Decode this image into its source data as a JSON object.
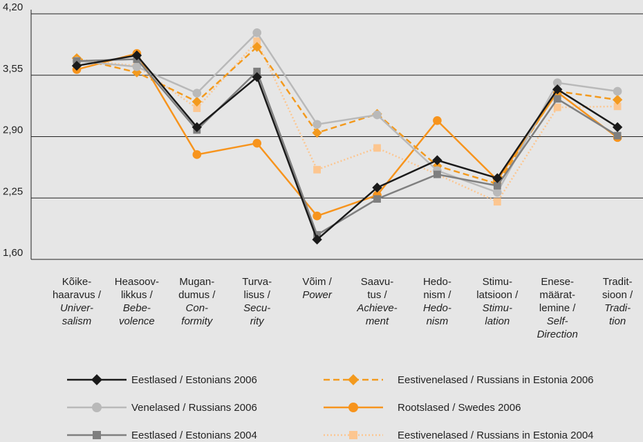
{
  "chart_data": {
    "type": "line",
    "categories": [
      [
        "Kõike-",
        "haaravus /",
        "Univer-",
        "salism"
      ],
      [
        "Heasoov-",
        "likkus /",
        "Bebe-",
        "volence"
      ],
      [
        "Mugan-",
        "dumus /",
        "Con-",
        "formity"
      ],
      [
        "Turva-",
        "lisus /",
        "Secu-",
        "rity"
      ],
      [
        "Võim /",
        "Power"
      ],
      [
        "Saavu-",
        "tus /",
        "Achieve-",
        "ment"
      ],
      [
        "Hedo-",
        "nism /",
        "Hedo-",
        "nism"
      ],
      [
        "Stimu-",
        "latsioon /",
        "Stimu-",
        "lation"
      ],
      [
        "Enese-",
        "määrat-",
        "lemine /",
        "Self-",
        "Direction"
      ],
      [
        "Tradit-",
        "sioon /",
        "Tradi-",
        "tion"
      ]
    ],
    "ylim": [
      1.6,
      4.2
    ],
    "yticks": [
      {
        "value": 1.6,
        "label": "1,60"
      },
      {
        "value": 2.25,
        "label": "2,25"
      },
      {
        "value": 2.9,
        "label": "2,90"
      },
      {
        "value": 3.55,
        "label": "3,55"
      },
      {
        "value": 4.2,
        "label": "4,20"
      }
    ],
    "grid": true,
    "series": [
      {
        "name": "Eestlased / Estonians 2006",
        "color": "#1a1a1a",
        "marker": "diamond",
        "dash": "solid",
        "values": [
          3.65,
          3.76,
          3.0,
          3.53,
          1.81,
          2.36,
          2.65,
          2.46,
          3.4,
          3.0
        ]
      },
      {
        "name": "Venelased / Russians 2006",
        "color": "#b9b9b9",
        "marker": "circle",
        "dash": "solid",
        "values": [
          3.7,
          3.64,
          3.36,
          4.0,
          3.03,
          3.13,
          2.54,
          2.31,
          3.47,
          3.38
        ]
      },
      {
        "name": "Eestlased / Estonians 2004",
        "color": "#7f7f7f",
        "marker": "square",
        "dash": "solid",
        "values": [
          3.7,
          3.72,
          2.97,
          3.59,
          1.86,
          2.24,
          2.5,
          2.38,
          3.3,
          2.91
        ]
      },
      {
        "name": "Eestivenelased / Russians in Estonia 2006",
        "color": "#f39a1e",
        "marker": "diamond",
        "dash": "dashed",
        "values": [
          3.73,
          3.58,
          3.27,
          3.85,
          2.94,
          3.14,
          2.59,
          2.4,
          3.38,
          3.29
        ]
      },
      {
        "name": "Rootslased / Swedes 2006",
        "color": "#f7941d",
        "marker": "circle",
        "dash": "solid",
        "values": [
          3.61,
          3.78,
          2.71,
          2.83,
          2.06,
          2.28,
          3.07,
          2.44,
          3.37,
          2.89
        ]
      },
      {
        "name": "Eestivenelased / Russians in Estonia 2004",
        "color": "#fcc690",
        "marker": "square",
        "dash": "dotted",
        "values": [
          3.71,
          3.65,
          3.2,
          3.91,
          2.55,
          2.78,
          2.5,
          2.21,
          3.21,
          3.22
        ]
      }
    ]
  }
}
